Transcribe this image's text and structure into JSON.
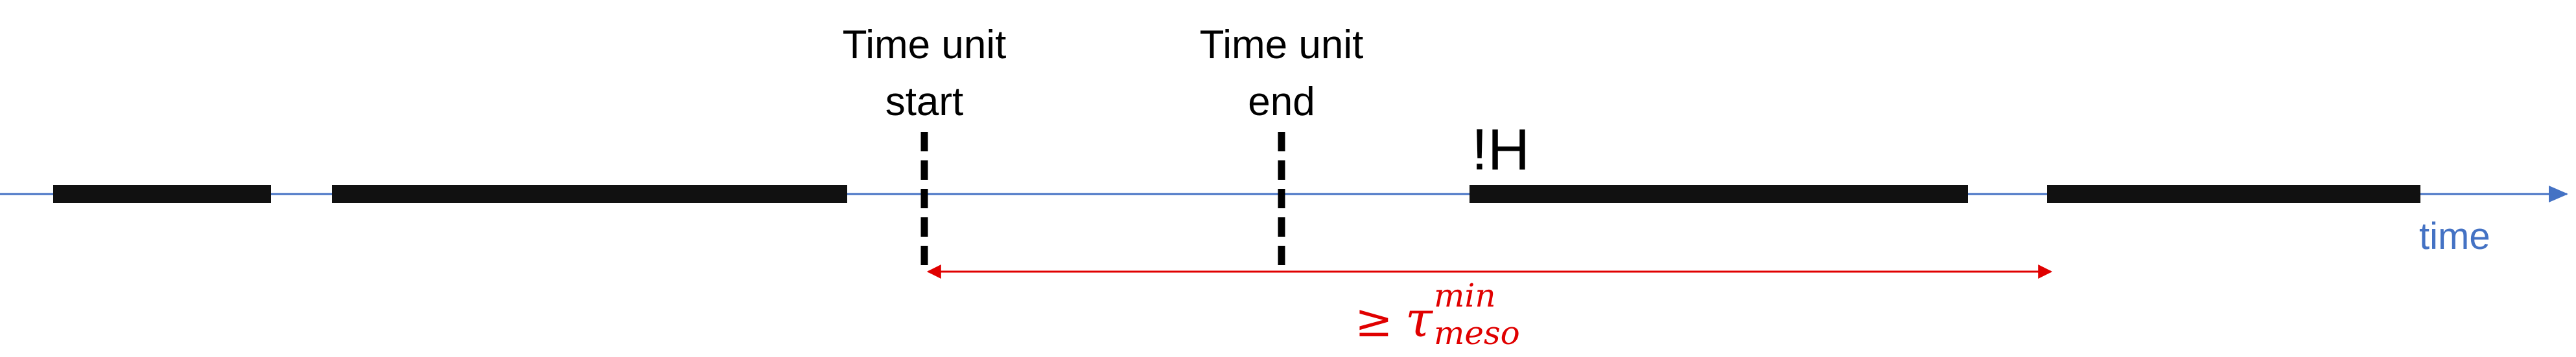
{
  "labels": {
    "start": {
      "line1": "Time unit",
      "line2": "start"
    },
    "end": {
      "line1": "Time unit",
      "line2": "end"
    },
    "event": "!H",
    "axis": "time",
    "interval": {
      "relation": "≥",
      "symbol": "τ",
      "superscript": "min",
      "subscript": "meso"
    }
  }
}
